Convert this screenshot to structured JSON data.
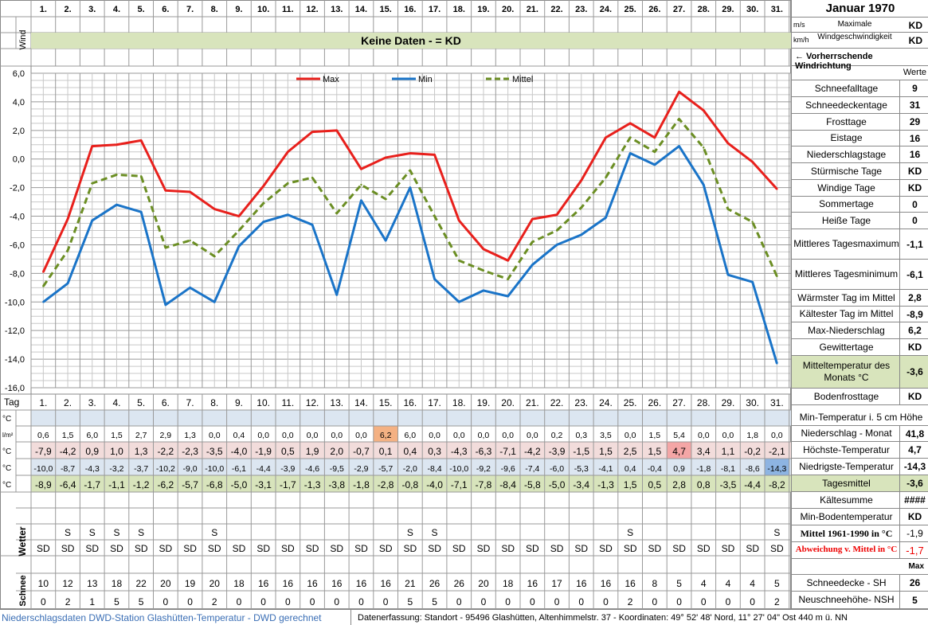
{
  "header": {
    "month_title": "Januar 1970",
    "wind_label": "Wind",
    "unit_ms": "m/s",
    "unit_kmh": "km/h",
    "max_wind_label": "Maximale Windgeschwindigkeit",
    "max_wind_ms": "KD",
    "max_wind_kmh": "KD",
    "no_data_banner": "Keine Daten -  = KD",
    "wind_direction_label": "← Vorherrschende Windrichtung"
  },
  "days": [
    "1.",
    "2.",
    "3.",
    "4.",
    "5.",
    "6.",
    "7.",
    "8.",
    "9.",
    "10.",
    "11.",
    "12.",
    "13.",
    "14.",
    "15.",
    "16.",
    "17.",
    "18.",
    "19.",
    "20.",
    "21.",
    "22.",
    "23.",
    "24.",
    "25.",
    "26.",
    "27.",
    "28.",
    "29.",
    "30.",
    "31."
  ],
  "chart_data": {
    "type": "line",
    "x": [
      1,
      2,
      3,
      4,
      5,
      6,
      7,
      8,
      9,
      10,
      11,
      12,
      13,
      14,
      15,
      16,
      17,
      18,
      19,
      20,
      21,
      22,
      23,
      24,
      25,
      26,
      27,
      28,
      29,
      30,
      31
    ],
    "ylim": [
      -16,
      6
    ],
    "yticks": [
      "6,0",
      "4,0",
      "2,0",
      "0,0",
      "-2,0",
      "-4,0",
      "-6,0",
      "-8,0",
      "-10,0",
      "-12,0",
      "-14,0",
      "-16,0"
    ],
    "series": [
      {
        "name": "Max",
        "color": "#e8201c",
        "dash": false,
        "values": [
          -7.9,
          -4.2,
          0.9,
          1.0,
          1.3,
          -2.2,
          -2.3,
          -3.5,
          -4.0,
          -1.9,
          0.5,
          1.9,
          2.0,
          -0.7,
          0.1,
          0.4,
          0.3,
          -4.3,
          -6.3,
          -7.1,
          -4.2,
          -3.9,
          -1.5,
          1.5,
          2.5,
          1.5,
          4.7,
          3.4,
          1.1,
          -0.2,
          -2.1
        ]
      },
      {
        "name": "Min",
        "color": "#1a74c8",
        "dash": false,
        "values": [
          -10.0,
          -8.7,
          -4.3,
          -3.2,
          -3.7,
          -10.2,
          -9.0,
          -10.0,
          -6.1,
          -4.4,
          -3.9,
          -4.6,
          -9.5,
          -2.9,
          -5.7,
          -2.0,
          -8.4,
          -10.0,
          -9.2,
          -9.6,
          -7.4,
          -6.0,
          -5.3,
          -4.1,
          0.4,
          -0.4,
          0.9,
          -1.8,
          -8.1,
          -8.6,
          -14.3
        ]
      },
      {
        "name": "Mittel",
        "color": "#6b8e23",
        "dash": true,
        "values": [
          -8.9,
          -6.4,
          -1.7,
          -1.1,
          -1.2,
          -6.2,
          -5.7,
          -6.8,
          -5.0,
          -3.1,
          -1.7,
          -1.3,
          -3.8,
          -1.8,
          -2.8,
          -0.8,
          -4.0,
          -7.1,
          -7.8,
          -8.4,
          -5.8,
          -5.0,
          -3.4,
          -1.3,
          1.5,
          0.5,
          2.8,
          0.8,
          -3.5,
          -4.4,
          -8.2
        ]
      }
    ]
  },
  "table": {
    "tag_label": "Tag",
    "unit_c": "°C",
    "unit_lm2": "l/m²",
    "niederschlag": [
      "0,6",
      "1,5",
      "6,0",
      "1,5",
      "2,7",
      "2,9",
      "1,3",
      "0,0",
      "0,4",
      "0,0",
      "0,0",
      "0,0",
      "0,0",
      "0,0",
      "6,2",
      "6,0",
      "0,0",
      "0,0",
      "0,0",
      "0,0",
      "0,0",
      "0,2",
      "0,3",
      "3,5",
      "0,0",
      "1,5",
      "5,4",
      "0,0",
      "0,0",
      "1,8",
      "0,0"
    ],
    "hoechst": [
      "-7,9",
      "-4,2",
      "0,9",
      "1,0",
      "1,3",
      "-2,2",
      "-2,3",
      "-3,5",
      "-4,0",
      "-1,9",
      "0,5",
      "1,9",
      "2,0",
      "-0,7",
      "0,1",
      "0,4",
      "0,3",
      "-4,3",
      "-6,3",
      "-7,1",
      "-4,2",
      "-3,9",
      "-1,5",
      "1,5",
      "2,5",
      "1,5",
      "4,7",
      "3,4",
      "1,1",
      "-0,2",
      "-2,1"
    ],
    "niedrigst": [
      "-10,0",
      "-8,7",
      "-4,3",
      "-3,2",
      "-3,7",
      "-10,2",
      "-9,0",
      "-10,0",
      "-6,1",
      "-4,4",
      "-3,9",
      "-4,6",
      "-9,5",
      "-2,9",
      "-5,7",
      "-2,0",
      "-8,4",
      "-10,0",
      "-9,2",
      "-9,6",
      "-7,4",
      "-6,0",
      "-5,3",
      "-4,1",
      "0,4",
      "-0,4",
      "0,9",
      "-1,8",
      "-8,1",
      "-8,6",
      "-14,3"
    ],
    "mittel": [
      "-8,9",
      "-6,4",
      "-1,7",
      "-1,1",
      "-1,2",
      "-6,2",
      "-5,7",
      "-6,8",
      "-5,0",
      "-3,1",
      "-1,7",
      "-1,3",
      "-3,8",
      "-1,8",
      "-2,8",
      "-0,8",
      "-4,0",
      "-7,1",
      "-7,8",
      "-8,4",
      "-5,8",
      "-5,0",
      "-3,4",
      "-1,3",
      "1,5",
      "0,5",
      "2,8",
      "0,8",
      "-3,5",
      "-4,4",
      "-8,2"
    ],
    "wetter_label": "Wetter",
    "wetter_s": [
      "",
      "S",
      "S",
      "S",
      "S",
      "",
      "",
      "S",
      "",
      "",
      "",
      "",
      "",
      "",
      "",
      "S",
      "S",
      "",
      "",
      "",
      "",
      "",
      "",
      "",
      "S",
      "",
      "",
      "",
      "",
      "",
      "S"
    ],
    "wetter_sd": [
      "SD",
      "SD",
      "SD",
      "SD",
      "SD",
      "SD",
      "SD",
      "SD",
      "SD",
      "SD",
      "SD",
      "SD",
      "SD",
      "SD",
      "SD",
      "SD",
      "SD",
      "SD",
      "SD",
      "SD",
      "SD",
      "SD",
      "SD",
      "SD",
      "SD",
      "SD",
      "SD",
      "SD",
      "SD",
      "SD",
      "SD"
    ],
    "schnee_label": "Schnee",
    "schneedecke": [
      "10",
      "12",
      "13",
      "18",
      "22",
      "20",
      "19",
      "20",
      "18",
      "16",
      "16",
      "16",
      "16",
      "16",
      "16",
      "21",
      "26",
      "26",
      "20",
      "18",
      "16",
      "17",
      "16",
      "16",
      "16",
      "8",
      "5",
      "4",
      "4",
      "4",
      "5"
    ],
    "neuschnee": [
      "0",
      "2",
      "1",
      "5",
      "5",
      "0",
      "0",
      "2",
      "0",
      "0",
      "0",
      "0",
      "0",
      "0",
      "0",
      "5",
      "5",
      "0",
      "0",
      "0",
      "0",
      "0",
      "0",
      "0",
      "2",
      "0",
      "0",
      "0",
      "0",
      "0",
      "2"
    ]
  },
  "panel": {
    "werte_label": "Werte",
    "stats": [
      {
        "label": "Schneefalltage",
        "value": "9"
      },
      {
        "label": "Schneedeckentage",
        "value": "31"
      },
      {
        "label": "Frosttage",
        "value": "29"
      },
      {
        "label": "Eistage",
        "value": "16"
      },
      {
        "label": "Niederschlagstage",
        "value": "16"
      },
      {
        "label": "Stürmische Tage",
        "value": "KD"
      },
      {
        "label": "Windige Tage",
        "value": "KD"
      },
      {
        "label": "Sommertage",
        "value": "0"
      },
      {
        "label": "Heiße Tage",
        "value": "0"
      },
      {
        "label": "Mittleres Tagesmaximum",
        "value": "-1,1"
      },
      {
        "label": "Mittleres Tagesminimum",
        "value": "-6,1"
      },
      {
        "label": "Wärmster Tag im Mittel",
        "value": "2,8"
      },
      {
        "label": "Kältester Tag im Mittel",
        "value": "-8,9"
      },
      {
        "label": "Max-Niederschlag",
        "value": "6,2"
      },
      {
        "label": "Gewittertage",
        "value": "KD"
      },
      {
        "label": "Mitteltemperatur des Monats °C",
        "value": "-3,6"
      },
      {
        "label": "Bodenfrosttage",
        "value": "KD"
      }
    ],
    "min_temp_5cm": "Min-Temperatur i. 5 cm Höhe",
    "niederschlag_monat": {
      "label": "Niederschlag - Monat",
      "value": "41,8"
    },
    "hoechste": {
      "label": "Höchste-Temperatur",
      "value": "4,7"
    },
    "niedrigste": {
      "label": "Niedrigste-Temperatur",
      "value": "-14,3"
    },
    "tagesmittel": {
      "label": "Tagesmittel",
      "value": "-3,6"
    },
    "kaeltesumme": {
      "label": "Kältesumme",
      "value": "####"
    },
    "min_boden": {
      "label": "Min-Bodentemperatur",
      "value": "KD"
    },
    "mittel_1961": {
      "label": "Mittel 1961-1990 in °C",
      "value": "-1,9"
    },
    "abweichung": {
      "label": "Abweichung v. Mittel in °C",
      "value": "-1,7"
    },
    "max_label": "Max",
    "schneedecke_sh": {
      "label": "Schneedecke -  SH",
      "value": "26"
    },
    "neuschnee_nsh": {
      "label": "Neuschneehöhe- NSH",
      "value": "5"
    }
  },
  "footer": {
    "left": "Niederschlagsdaten DWD-Station Glashütten-Temperatur -  DWD gerechnet",
    "right": "Datenerfassung: Standort -  95496  Glashütten, Altenhimmelstr. 37 - Koordinaten:  49° 52' 48' Nord,   11° 27' 04\" Ost   440 m ü. NN"
  }
}
